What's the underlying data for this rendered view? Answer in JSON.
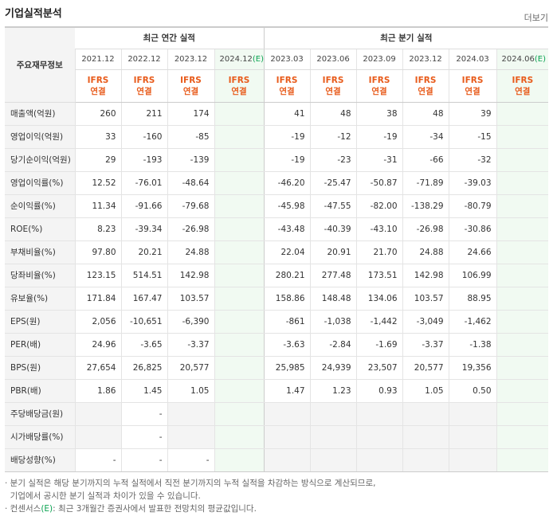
{
  "header": {
    "title": "기업실적분석",
    "more": "더보기"
  },
  "table": {
    "corner": "주요재무정보",
    "groups": {
      "annual": "최근 연간 실적",
      "quarter": "최근 분기 실적"
    },
    "annual_periods": [
      "2021.12",
      "2022.12",
      "2023.12",
      "2024.12"
    ],
    "quarter_periods": [
      "2023.03",
      "2023.06",
      "2023.09",
      "2023.12",
      "2024.03",
      "2024.06"
    ],
    "estimate_mark": "(E)",
    "ifrs_label": "IFRS",
    "consolidated_label": "연결",
    "rows": [
      {
        "label": "매출액(억원)",
        "values": [
          "260",
          "211",
          "174",
          "",
          "41",
          "48",
          "38",
          "48",
          "39",
          ""
        ]
      },
      {
        "label": "영업이익(억원)",
        "values": [
          "33",
          "-160",
          "-85",
          "",
          "-19",
          "-12",
          "-19",
          "-34",
          "-15",
          ""
        ]
      },
      {
        "label": "당기순이익(억원)",
        "values": [
          "29",
          "-193",
          "-139",
          "",
          "-19",
          "-23",
          "-31",
          "-66",
          "-32",
          ""
        ]
      },
      {
        "label": "영업이익률(%)",
        "values": [
          "12.52",
          "-76.01",
          "-48.64",
          "",
          "-46.20",
          "-25.47",
          "-50.87",
          "-71.89",
          "-39.03",
          ""
        ]
      },
      {
        "label": "순이익률(%)",
        "values": [
          "11.34",
          "-91.66",
          "-79.68",
          "",
          "-45.98",
          "-47.55",
          "-82.00",
          "-138.29",
          "-80.79",
          ""
        ]
      },
      {
        "label": "ROE(%)",
        "values": [
          "8.23",
          "-39.34",
          "-26.98",
          "",
          "-43.48",
          "-40.39",
          "-43.10",
          "-26.98",
          "-30.86",
          ""
        ]
      },
      {
        "label": "부채비율(%)",
        "values": [
          "97.80",
          "20.21",
          "24.88",
          "",
          "22.04",
          "20.91",
          "21.70",
          "24.88",
          "24.66",
          ""
        ]
      },
      {
        "label": "당좌비율(%)",
        "values": [
          "123.15",
          "514.51",
          "142.98",
          "",
          "280.21",
          "277.48",
          "173.51",
          "142.98",
          "106.99",
          ""
        ]
      },
      {
        "label": "유보율(%)",
        "values": [
          "171.84",
          "167.47",
          "103.57",
          "",
          "158.86",
          "148.48",
          "134.06",
          "103.57",
          "88.95",
          ""
        ]
      },
      {
        "label": "EPS(원)",
        "values": [
          "2,056",
          "-10,651",
          "-6,390",
          "",
          "-861",
          "-1,038",
          "-1,442",
          "-3,049",
          "-1,462",
          ""
        ]
      },
      {
        "label": "PER(배)",
        "values": [
          "24.96",
          "-3.65",
          "-3.37",
          "",
          "-3.63",
          "-2.84",
          "-1.69",
          "-3.37",
          "-1.38",
          ""
        ]
      },
      {
        "label": "BPS(원)",
        "values": [
          "27,654",
          "26,825",
          "20,577",
          "",
          "25,985",
          "24,939",
          "23,507",
          "20,577",
          "19,356",
          ""
        ]
      },
      {
        "label": "PBR(배)",
        "values": [
          "1.86",
          "1.45",
          "1.05",
          "",
          "1.47",
          "1.23",
          "0.93",
          "1.05",
          "0.50",
          ""
        ]
      },
      {
        "label": "주당배당금(원)",
        "values": [
          "",
          "-",
          "",
          "",
          "",
          "",
          "",
          "",
          "",
          ""
        ]
      },
      {
        "label": "시가배당률(%)",
        "values": [
          "",
          "-",
          "",
          "",
          "",
          "",
          "",
          "",
          "",
          ""
        ]
      },
      {
        "label": "배당성향(%)",
        "values": [
          "-",
          "-",
          "-",
          "",
          "",
          "",
          "",
          "",
          "",
          ""
        ]
      }
    ]
  },
  "notes": {
    "line1": "· 분기 실적은 해당 분기까지의 누적 실적에서 직전 분기까지의 누적 실적을 차감하는 방식으로 계산되므로,",
    "line2": "  기업에서 공시한 분기 실적과 차이가 있을 수 있습니다.",
    "line3_prefix": "· 컨센서스",
    "line3_mark": "(E)",
    "line3_suffix": ": 최근 3개월간 증권사에서 발표한 전망치의 평균값입니다."
  }
}
